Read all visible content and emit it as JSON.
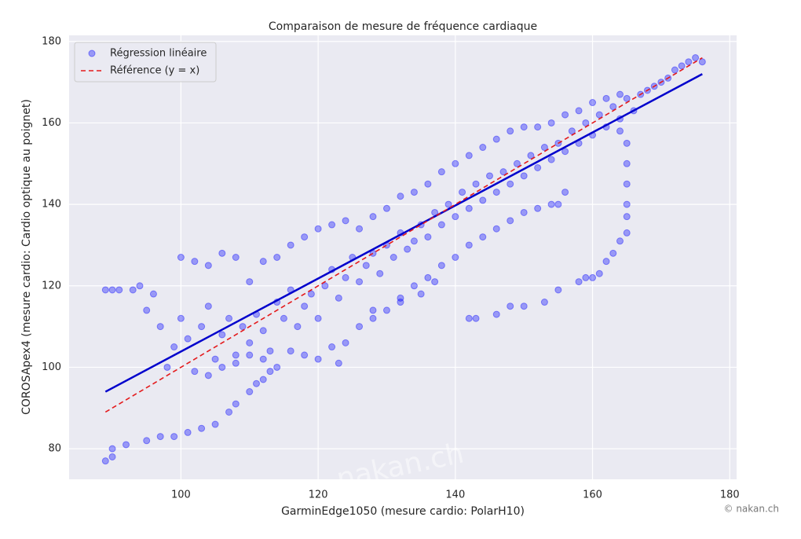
{
  "chart_data": {
    "type": "scatter",
    "title": "Comparaison de mesure de fréquence cardiaque",
    "x_label": "GarminEdge1050 (mesure cardio: PolarH10)",
    "y_label": "COROSApex4 (mesure cardio: Cardio optique au poignet)",
    "credit": "© nakan.ch",
    "watermark": "nakan.ch",
    "xlim": [
      83.7,
      181
    ],
    "ylim": [
      72.5,
      181.5
    ],
    "xticks": [
      100,
      120,
      140,
      160,
      180
    ],
    "yticks": [
      80,
      100,
      120,
      140,
      160,
      180
    ],
    "grid": true,
    "legend": "upper-left",
    "series": [
      {
        "name": "Régression linéaire",
        "type": "scatter",
        "color": "#0000ff",
        "x": [
          89,
          90,
          91,
          93,
          94,
          95,
          96,
          97,
          98,
          99,
          100,
          101,
          102,
          103,
          104,
          105,
          106,
          107,
          108,
          109,
          110,
          111,
          112,
          113,
          114,
          115,
          116,
          117,
          118,
          119,
          120,
          121,
          122,
          123,
          124,
          125,
          126,
          127,
          128,
          129,
          130,
          131,
          132,
          133,
          134,
          135,
          136,
          137,
          138,
          139,
          140,
          141,
          142,
          143,
          144,
          145,
          146,
          147,
          148,
          149,
          150,
          151,
          152,
          153,
          154,
          155,
          156,
          157,
          158,
          159,
          160,
          161,
          162,
          163,
          164,
          165,
          166,
          167,
          168,
          169,
          170,
          171,
          172,
          173,
          174,
          175,
          176,
          100,
          102,
          104,
          106,
          108,
          110,
          112,
          114,
          116,
          118,
          120,
          122,
          124,
          126,
          128,
          130,
          132,
          134,
          136,
          138,
          140,
          142,
          144,
          146,
          148,
          150,
          152,
          154,
          156,
          158,
          160,
          162,
          164,
          104,
          106,
          108,
          110,
          112,
          114,
          116,
          118,
          120,
          122,
          123,
          124,
          126,
          128,
          130,
          132,
          134,
          136,
          138,
          140,
          142,
          144,
          146,
          148,
          150,
          152,
          154,
          155,
          156,
          89,
          90,
          90,
          92,
          95,
          97,
          99,
          101,
          103,
          105,
          107,
          108,
          110,
          111,
          112,
          113,
          128,
          132,
          135,
          137,
          142,
          143,
          146,
          148,
          150,
          153,
          155,
          158,
          159,
          160,
          161,
          162,
          163,
          164,
          165,
          165,
          165,
          165,
          165,
          165,
          164
        ],
        "values": [
          119,
          119,
          119,
          119,
          120,
          114,
          118,
          110,
          100,
          105,
          112,
          107,
          99,
          110,
          115,
          102,
          108,
          112,
          103,
          110,
          106,
          113,
          109,
          104,
          116,
          112,
          119,
          110,
          115,
          118,
          112,
          120,
          124,
          117,
          122,
          127,
          121,
          125,
          128,
          123,
          130,
          127,
          133,
          129,
          131,
          135,
          132,
          138,
          135,
          140,
          137,
          143,
          139,
          145,
          141,
          147,
          143,
          148,
          145,
          150,
          147,
          152,
          149,
          154,
          151,
          155,
          153,
          158,
          155,
          160,
          157,
          162,
          159,
          164,
          161,
          166,
          163,
          167,
          168,
          169,
          170,
          171,
          173,
          174,
          175,
          176,
          175,
          127,
          126,
          125,
          128,
          127,
          121,
          126,
          127,
          130,
          132,
          134,
          135,
          136,
          134,
          137,
          139,
          142,
          143,
          145,
          148,
          150,
          152,
          154,
          156,
          158,
          159,
          159,
          160,
          162,
          163,
          165,
          166,
          167,
          98,
          100,
          101,
          103,
          102,
          100,
          104,
          103,
          102,
          105,
          101,
          106,
          110,
          112,
          114,
          117,
          120,
          122,
          125,
          127,
          130,
          132,
          134,
          136,
          138,
          139,
          140,
          140,
          143,
          77,
          80,
          78,
          81,
          82,
          83,
          83,
          84,
          85,
          86,
          89,
          91,
          94,
          96,
          97,
          99,
          114,
          116,
          118,
          121,
          112,
          112,
          113,
          115,
          115,
          116,
          119,
          121,
          122,
          122,
          123,
          126,
          128,
          131,
          133,
          137,
          140,
          145,
          150,
          155,
          158
        ]
      },
      {
        "name": "Référence (y = x)",
        "type": "line",
        "dash": true,
        "color": "#e41a1c",
        "x": [
          89,
          176
        ],
        "values": [
          89,
          176
        ]
      }
    ],
    "regression_line": {
      "color": "#0000cc",
      "x": [
        89,
        176
      ],
      "values": [
        94,
        172
      ]
    }
  }
}
